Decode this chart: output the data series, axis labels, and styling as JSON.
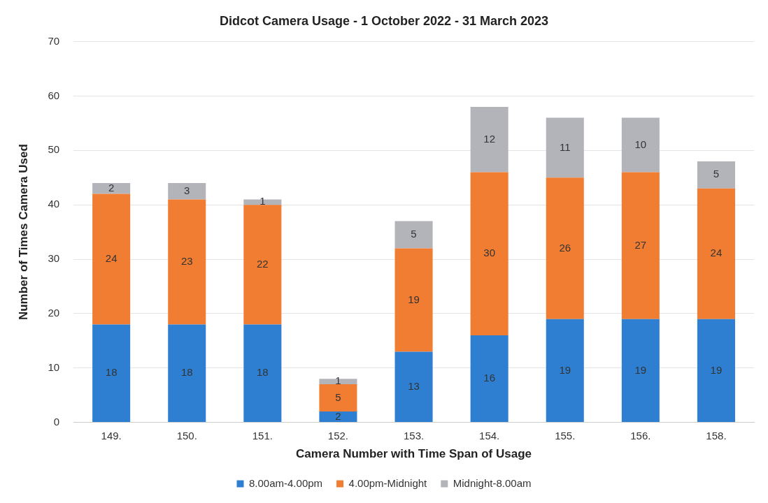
{
  "chart_data": {
    "type": "bar",
    "title": "Didcot Camera Usage - 1 October 2022 - 31 March 2023",
    "xlabel": "Camera Number with Time Span of Usage",
    "ylabel": "Number of Times Camera Used",
    "categories": [
      "149.",
      "150.",
      "151.",
      "152.",
      "153.",
      "154.",
      "155.",
      "156.",
      "158."
    ],
    "series": [
      {
        "name": "8.00am-4.00pm",
        "color": "#2e7fd2",
        "values": [
          18,
          18,
          18,
          2,
          13,
          16,
          19,
          19,
          19
        ]
      },
      {
        "name": "4.00pm-Midnight",
        "color": "#f07d32",
        "values": [
          24,
          23,
          22,
          5,
          19,
          30,
          26,
          27,
          24
        ]
      },
      {
        "name": "Midnight-8.00am",
        "color": "#b3b3ba",
        "values": [
          2,
          3,
          1,
          1,
          5,
          12,
          11,
          10,
          5
        ]
      }
    ],
    "stacked": true,
    "ylim": [
      0,
      70
    ],
    "yticks": [
      0,
      10,
      20,
      30,
      40,
      50,
      60,
      70
    ],
    "grid": "y",
    "legend": "bottom",
    "data_labels": true
  }
}
